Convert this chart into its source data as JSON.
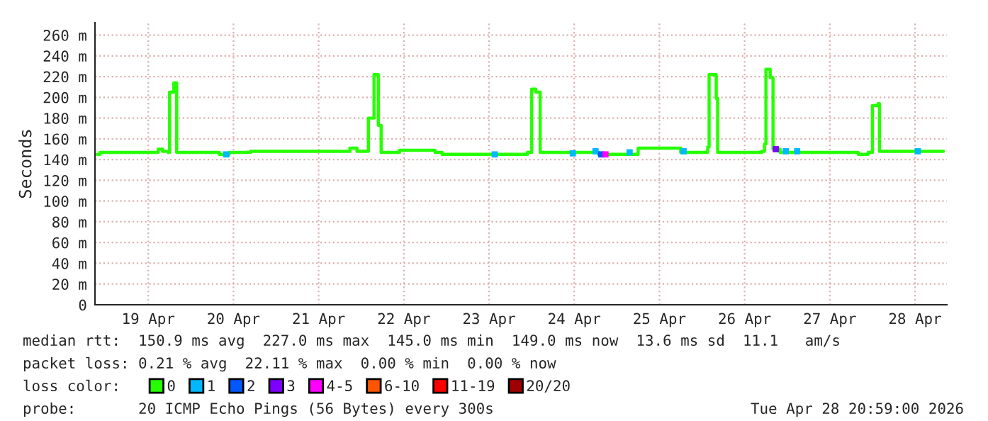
{
  "chart_data": {
    "type": "step",
    "ylabel": "Seconds",
    "legend_title": "loss color:",
    "legend": "bottom",
    "grid": true,
    "xlim": [
      "2026-04-18T20:59",
      "2026-04-28T20:59"
    ],
    "xticks": [
      {
        "value": "2026-04-19T12:00",
        "label": "19 Apr"
      },
      {
        "value": "2026-04-20T12:00",
        "label": "20 Apr"
      },
      {
        "value": "2026-04-21T12:00",
        "label": "21 Apr"
      },
      {
        "value": "2026-04-22T12:00",
        "label": "22 Apr"
      },
      {
        "value": "2026-04-23T12:00",
        "label": "23 Apr"
      },
      {
        "value": "2026-04-24T12:00",
        "label": "24 Apr"
      },
      {
        "value": "2026-04-25T12:00",
        "label": "25 Apr"
      },
      {
        "value": "2026-04-26T12:00",
        "label": "26 Apr"
      },
      {
        "value": "2026-04-27T12:00",
        "label": "27 Apr"
      },
      {
        "value": "2026-04-28T12:00",
        "label": "28 Apr"
      }
    ],
    "ylim": [
      0,
      272
    ],
    "yticks": [
      0,
      {
        "value": 20,
        "label": "20 m"
      },
      {
        "value": 40,
        "label": "40 m"
      },
      {
        "value": 60,
        "label": "60 m"
      },
      {
        "value": 80,
        "label": "80 m"
      },
      {
        "value": 100,
        "label": "100 m"
      },
      {
        "value": 120,
        "label": "120 m"
      },
      {
        "value": 140,
        "label": "140 m"
      },
      {
        "value": 160,
        "label": "160 m"
      },
      {
        "value": 180,
        "label": "180 m"
      },
      {
        "value": 200,
        "label": "200 m"
      },
      {
        "value": 220,
        "label": "220 m"
      },
      {
        "value": 240,
        "label": "240 m"
      },
      {
        "value": 260,
        "label": "260 m"
      }
    ],
    "series": [
      {
        "name": "0",
        "color": "#26ff00",
        "x": [
          "2026-04-18T21:36",
          "2026-04-18T22:24",
          "2026-04-19T14:00",
          "2026-04-19T14:48",
          "2026-04-19T16:00",
          "2026-04-19T17:36",
          "2026-04-19T18:00",
          "2026-04-19T19:12",
          "2026-04-19T20:00",
          "2026-04-20T08:00",
          "2026-04-20T10:48",
          "2026-04-20T16:48",
          "2026-04-21T18:48",
          "2026-04-21T20:48",
          "2026-04-21T22:48",
          "2026-04-22T02:00",
          "2026-04-22T03:36",
          "2026-04-22T04:48",
          "2026-04-22T05:36",
          "2026-04-22T10:48",
          "2026-04-22T20:48",
          "2026-04-22T22:48",
          "2026-04-23T22:48",
          "2026-04-24T00:00",
          "2026-04-24T01:12",
          "2026-04-24T02:24",
          "2026-04-24T18:48",
          "2026-04-25T06:00",
          "2026-04-25T18:00",
          "2026-04-26T01:36",
          "2026-04-26T02:00",
          "2026-04-26T04:00",
          "2026-04-26T04:24",
          "2026-04-26T16:48",
          "2026-04-26T17:36",
          "2026-04-26T18:00",
          "2026-04-26T19:12",
          "2026-04-26T20:00",
          "2026-04-26T22:00",
          "2026-04-27T20:00",
          "2026-04-27T22:48",
          "2026-04-28T00:00",
          "2026-04-28T01:36",
          "2026-04-28T02:00",
          "2026-04-28T20:00"
        ],
        "values": [
          145,
          147,
          147,
          150,
          148,
          147,
          205,
          214,
          147,
          145,
          147,
          148,
          148,
          151,
          148,
          180,
          222,
          173,
          147,
          149,
          147,
          145,
          147,
          208,
          205,
          147,
          145,
          151,
          147,
          152,
          222,
          199,
          147,
          148,
          155,
          227,
          219,
          150,
          147,
          145,
          147,
          192,
          194,
          148,
          148
        ]
      },
      {
        "name": "1",
        "color": "#00b8ff",
        "type": "scatter",
        "marker": "square",
        "x": [
          "2026-04-20T10:00",
          "2026-04-23T13:36",
          "2026-04-24T11:36",
          "2026-04-24T18:00",
          "2026-04-25T03:36",
          "2026-04-25T18:48",
          "2026-04-26T23:36",
          "2026-04-27T02:48",
          "2026-04-28T12:48"
        ],
        "values": [
          145,
          145,
          146,
          148,
          147,
          148,
          148,
          148,
          148
        ]
      },
      {
        "name": "2",
        "color": "#0059ff",
        "type": "scatter",
        "marker": "square",
        "x": [
          "2026-04-24T19:36"
        ],
        "values": [
          145
        ]
      },
      {
        "name": "3",
        "color": "#7e00ff",
        "type": "scatter",
        "marker": "square",
        "x": [
          "2026-04-26T20:48"
        ],
        "values": [
          150
        ]
      },
      {
        "name": "4-5",
        "color": "#ff00ff",
        "type": "scatter",
        "marker": "square",
        "x": [
          "2026-04-24T20:48"
        ],
        "values": [
          145
        ]
      },
      {
        "name": "6-10",
        "color": "#ff5500",
        "type": "scatter",
        "marker": "square"
      },
      {
        "name": "11-19",
        "color": "#ff0000",
        "type": "scatter",
        "marker": "square"
      },
      {
        "name": "20/20",
        "color": "#a10000",
        "type": "scatter",
        "marker": "square"
      }
    ],
    "annotations": [
      "median rtt:  150.9 ms avg  227.0 ms max  145.0 ms min  149.0 ms now  13.6 ms sd  11.1   am/s",
      "packet loss: 0.21 % avg  22.11 % max  0.00 % min  0.00 % now",
      "probe:       20 ICMP Echo Pings (56 Bytes) every 300s",
      "Tue Apr 28 20:59:00 2026"
    ]
  }
}
